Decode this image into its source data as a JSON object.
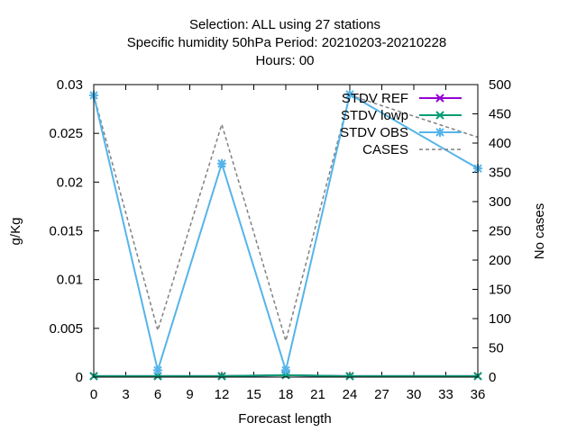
{
  "chart_data": {
    "type": "line",
    "title_lines": [
      "Selection: ALL using    27 stations",
      "Specific humidity 50hPa   Period: 20210203-20210228",
      "Hours:  00"
    ],
    "xlabel": "Forecast length",
    "ylabel": "g/Kg",
    "y2label": "No cases",
    "x_ticks": [
      "0",
      "3",
      "6",
      "9",
      "12",
      "15",
      "18",
      "21",
      "24",
      "27",
      "30",
      "33",
      "36"
    ],
    "y_ticks": [
      "0",
      "0.005",
      "0.01",
      "0.015",
      "0.02",
      "0.025",
      "0.03"
    ],
    "y2_ticks": [
      "0",
      "50",
      "100",
      "150",
      "200",
      "250",
      "300",
      "350",
      "400",
      "450",
      "500"
    ],
    "xlim": [
      0,
      36
    ],
    "ylim": [
      0,
      0.03
    ],
    "y2lim": [
      0,
      500
    ],
    "grid": false,
    "legend_position": "top-right",
    "colors": {
      "ref": "#9400d3",
      "lowp": "#009e73",
      "obs": "#56b4e9",
      "cases": "#808080"
    },
    "x": [
      0,
      6,
      12,
      18,
      24,
      36
    ],
    "series": [
      {
        "name": "STDV REF",
        "axis": "y",
        "color_key": "ref",
        "marker": "x",
        "values": [
          0.0001,
          0.0001,
          0.0001,
          0.0002,
          0.0001,
          0.0001
        ]
      },
      {
        "name": "STDV lowp",
        "axis": "y",
        "color_key": "lowp",
        "marker": "x",
        "values": [
          0.0001,
          0.0001,
          0.0001,
          0.0002,
          0.0001,
          0.0001
        ]
      },
      {
        "name": "STDV OBS",
        "axis": "y",
        "color_key": "obs",
        "marker": "box",
        "values": [
          0.0289,
          0.0007,
          0.0219,
          0.0007,
          0.029,
          0.0214
        ]
      },
      {
        "name": "CASES",
        "axis": "y2",
        "color_key": "cases",
        "marker": "none",
        "dashed": true,
        "values": [
          482,
          80,
          432,
          62,
          482,
          410
        ]
      }
    ]
  }
}
